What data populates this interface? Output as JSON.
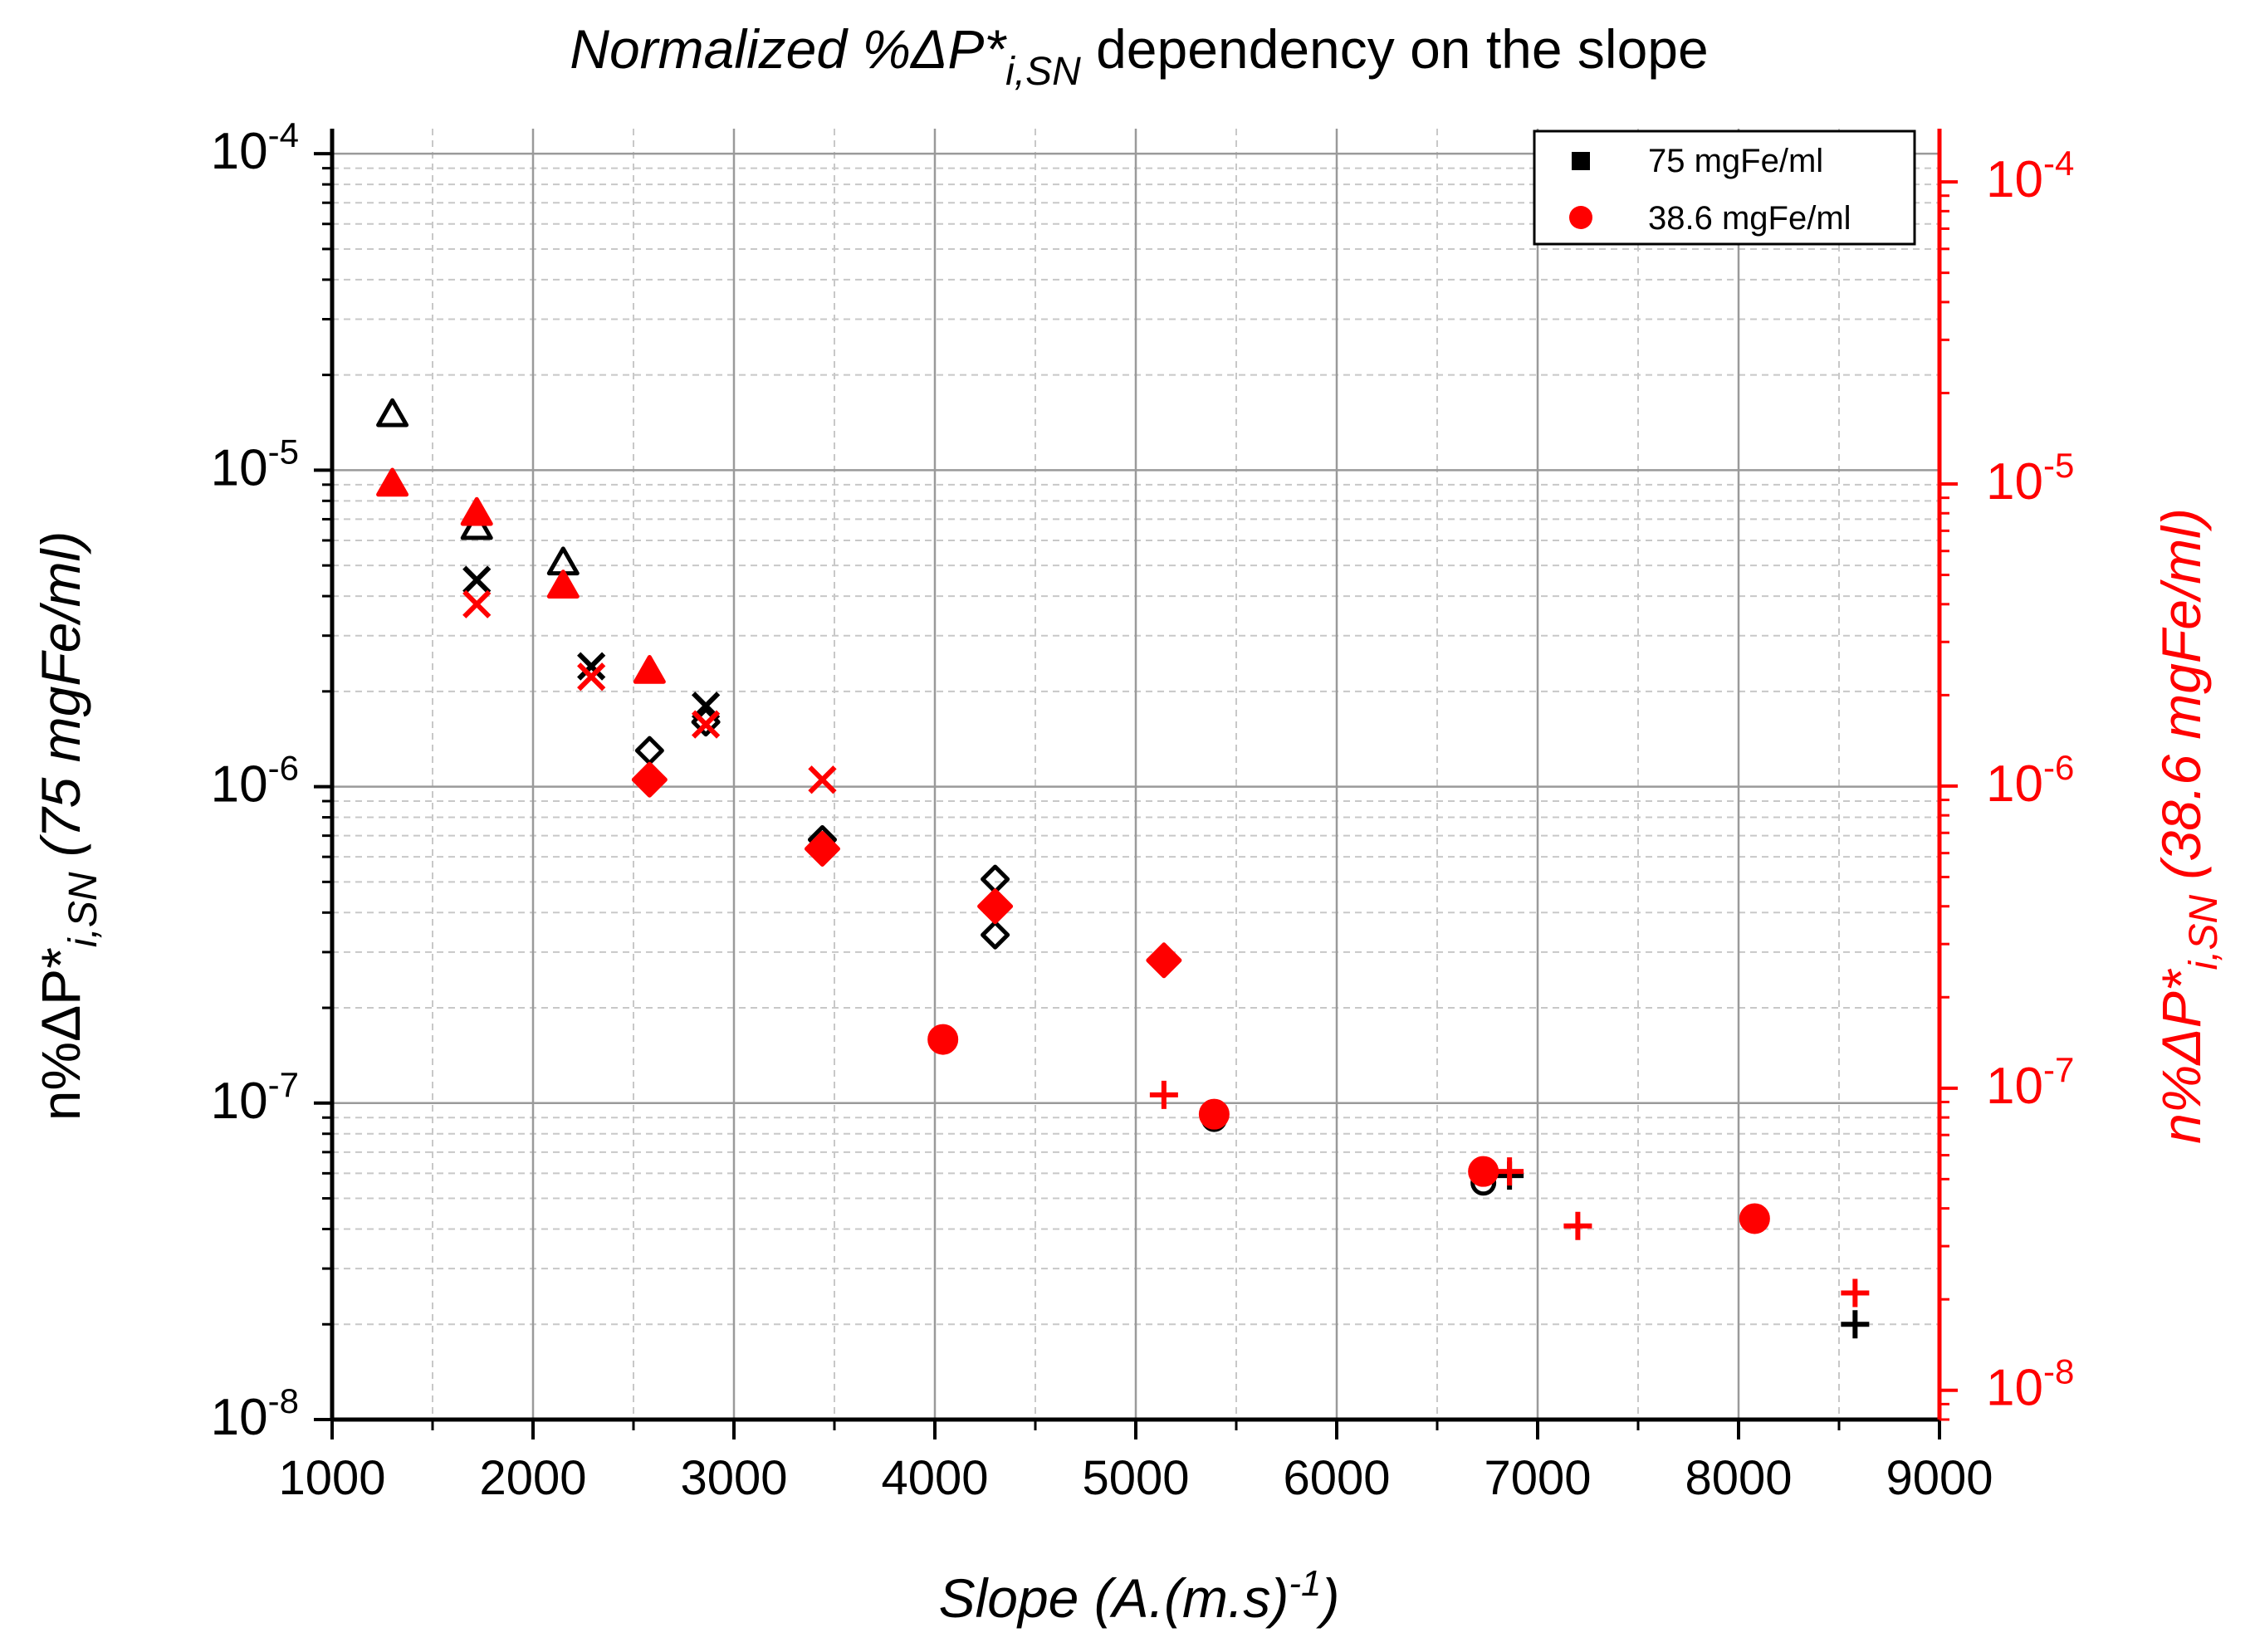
{
  "colors": {
    "series_75": "#000000",
    "series_386": "#ff0000",
    "grid": "#9a9a9a",
    "grid_minor": "#c8c8c8"
  },
  "title": {
    "main_it": "Normalized %ΔP*",
    "sub": "i,SN",
    "rest": " dependency on the slope"
  },
  "xaxis": {
    "label_main": "Slope (A.(m.s)",
    "label_sup": "-1",
    "label_end": ")"
  },
  "yaxis_left": {
    "label_main": "n%ΔP*",
    "label_sub": "i,SN",
    "label_end": " (75 mgFe/ml)"
  },
  "yaxis_right": {
    "label_main": "n%ΔP*",
    "label_sub": "i,SN",
    "label_end": " (38.6 mgFe/ml)"
  },
  "legend": [
    {
      "label": "75 mgFe/ml",
      "marker": "square",
      "color": "#000000"
    },
    {
      "label": "38.6 mgFe/ml",
      "marker": "circle",
      "color": "#ff0000"
    }
  ],
  "chart_data": {
    "type": "scatter",
    "title": "Normalized %ΔP*i,SN dependency on the slope",
    "xlabel": "Slope (A.(m.s)-1)",
    "ylabel_left": "n%ΔP*i,SN (75 mgFe/ml)",
    "ylabel_right": "n%ΔP*i,SN (38.6 mgFe/ml)",
    "xlim": [
      1000,
      9000
    ],
    "xticks": [
      1000,
      2000,
      3000,
      4000,
      5000,
      6000,
      7000,
      8000,
      9000
    ],
    "yscale": "log",
    "ylim_left": [
      1e-08,
      0.00012
    ],
    "ylim_right": [
      8e-09,
      0.00015
    ],
    "yticks_left": [
      {
        "base": "10",
        "exp": "-4",
        "value": 0.0001
      },
      {
        "base": "10",
        "exp": "-5",
        "value": 1e-05
      },
      {
        "base": "10",
        "exp": "-6",
        "value": 1e-06
      },
      {
        "base": "10",
        "exp": "-7",
        "value": 1e-07
      },
      {
        "base": "10",
        "exp": "-8",
        "value": 1e-08
      }
    ],
    "yticks_right": [
      {
        "base": "10",
        "exp": "-4",
        "value": 0.0001
      },
      {
        "base": "10",
        "exp": "-5",
        "value": 1e-05
      },
      {
        "base": "10",
        "exp": "-6",
        "value": 1e-06
      },
      {
        "base": "10",
        "exp": "-7",
        "value": 1e-07
      },
      {
        "base": "10",
        "exp": "-8",
        "value": 1e-08
      }
    ],
    "grid": true,
    "legend_position": "top-right",
    "series": [
      {
        "name": "75 mgFe/ml",
        "axis": "left",
        "color": "#000000",
        "filled": false,
        "points": [
          {
            "x": 1300,
            "y": 1.5e-05,
            "marker": "triangle"
          },
          {
            "x": 1720,
            "y": 6.6e-06,
            "marker": "triangle"
          },
          {
            "x": 2150,
            "y": 5.1e-06,
            "marker": "triangle"
          },
          {
            "x": 1720,
            "y": 4.5e-06,
            "marker": "x"
          },
          {
            "x": 2290,
            "y": 2.4e-06,
            "marker": "x"
          },
          {
            "x": 2860,
            "y": 1.8e-06,
            "marker": "x"
          },
          {
            "x": 2860,
            "y": 1.6e-06,
            "marker": "diamond"
          },
          {
            "x": 2580,
            "y": 1.3e-06,
            "marker": "diamond"
          },
          {
            "x": 3440,
            "y": 6.8e-07,
            "marker": "diamond"
          },
          {
            "x": 4300,
            "y": 5.1e-07,
            "marker": "diamond"
          },
          {
            "x": 4300,
            "y": 3.4e-07,
            "marker": "diamond"
          },
          {
            "x": 4040,
            "y": 1.6e-07,
            "marker": "circle"
          },
          {
            "x": 5390,
            "y": 8.9e-08,
            "marker": "circle"
          },
          {
            "x": 6730,
            "y": 5.6e-08,
            "marker": "circle"
          },
          {
            "x": 6860,
            "y": 5.9e-08,
            "marker": "plus"
          },
          {
            "x": 8580,
            "y": 2e-08,
            "marker": "plus"
          }
        ]
      },
      {
        "name": "38.6 mgFe/ml",
        "axis": "right",
        "color": "#ff0000",
        "filled": true,
        "points": [
          {
            "x": 1300,
            "y": 1e-05,
            "marker": "triangle"
          },
          {
            "x": 1720,
            "y": 8e-06,
            "marker": "triangle"
          },
          {
            "x": 2150,
            "y": 4.6e-06,
            "marker": "triangle"
          },
          {
            "x": 2580,
            "y": 2.4e-06,
            "marker": "triangle"
          },
          {
            "x": 1720,
            "y": 4e-06,
            "marker": "x"
          },
          {
            "x": 2290,
            "y": 2.3e-06,
            "marker": "x"
          },
          {
            "x": 2860,
            "y": 1.6e-06,
            "marker": "x"
          },
          {
            "x": 3440,
            "y": 1.05e-06,
            "marker": "x"
          },
          {
            "x": 2580,
            "y": 1.05e-06,
            "marker": "diamond"
          },
          {
            "x": 3440,
            "y": 6.2e-07,
            "marker": "diamond"
          },
          {
            "x": 4300,
            "y": 4e-07,
            "marker": "diamond"
          },
          {
            "x": 5140,
            "y": 2.65e-07,
            "marker": "diamond"
          },
          {
            "x": 4040,
            "y": 1.45e-07,
            "marker": "circle"
          },
          {
            "x": 5390,
            "y": 8.2e-08,
            "marker": "circle"
          },
          {
            "x": 6730,
            "y": 5.3e-08,
            "marker": "circle"
          },
          {
            "x": 8080,
            "y": 3.7e-08,
            "marker": "circle"
          },
          {
            "x": 5140,
            "y": 9.5e-08,
            "marker": "plus"
          },
          {
            "x": 6860,
            "y": 5.3e-08,
            "marker": "plus"
          },
          {
            "x": 7200,
            "y": 3.5e-08,
            "marker": "plus"
          },
          {
            "x": 8580,
            "y": 2.1e-08,
            "marker": "plus"
          }
        ]
      }
    ]
  }
}
